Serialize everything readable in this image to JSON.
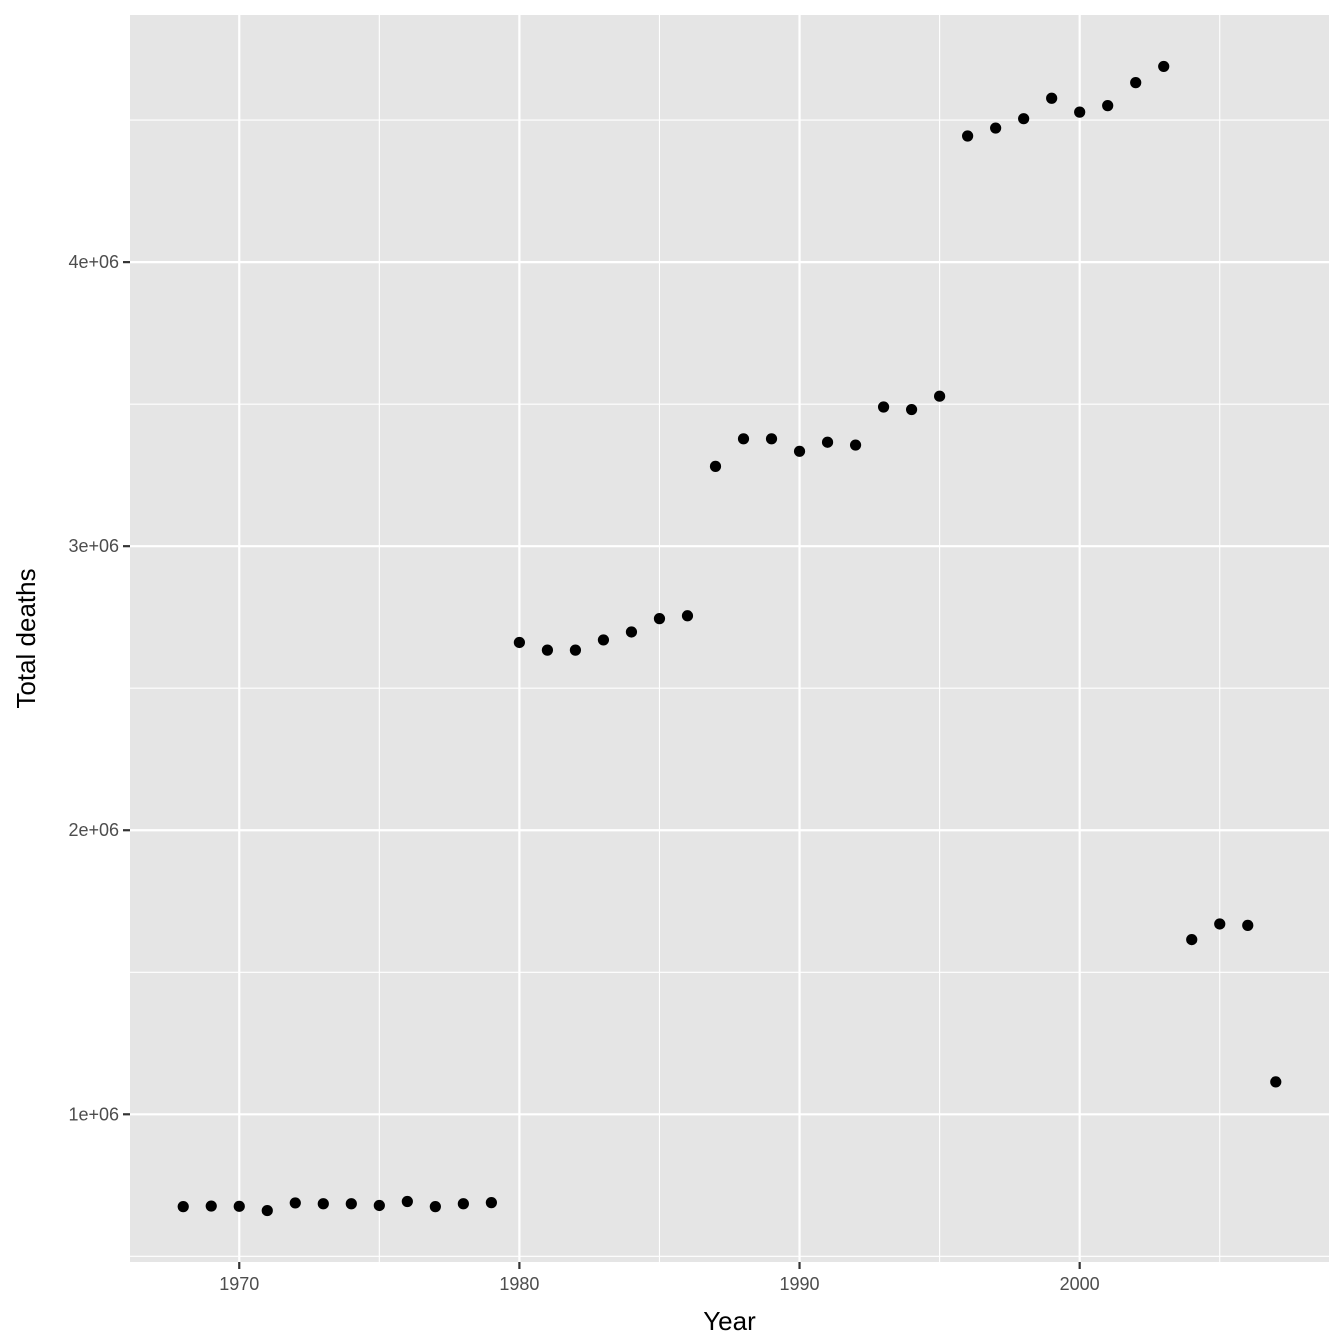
{
  "chart_data": {
    "type": "scatter",
    "title": "",
    "xlabel": "Year",
    "ylabel": "Total deaths",
    "xlim": [
      1966.1,
      2008.9
    ],
    "ylim": [
      480000,
      4870000
    ],
    "x_ticks": [
      1970,
      1980,
      1990,
      2000
    ],
    "x_tick_labels": [
      "1970",
      "1980",
      "1990",
      "2000"
    ],
    "x_minor_ticks": [
      1975,
      1985,
      1995,
      2005
    ],
    "y_ticks": [
      1000000,
      2000000,
      3000000,
      4000000
    ],
    "y_tick_labels": [
      "1e+06",
      "2e+06",
      "3e+06",
      "4e+06"
    ],
    "y_minor_ticks": [
      500000,
      1500000,
      2500000,
      3500000,
      4500000
    ],
    "grid": true,
    "legend": "none",
    "colors": {
      "panel_background": "#e5e5e5",
      "grid": "#ffffff",
      "point": "#000000",
      "tick_label": "#4d4d4d",
      "axis_title": "#000000"
    },
    "series": [
      {
        "x": [
          1968,
          1969,
          1970,
          1971,
          1972,
          1973,
          1974,
          1975,
          1976,
          1977,
          1978,
          1979,
          1980,
          1981,
          1982,
          1983,
          1984,
          1985,
          1986,
          1987,
          1988,
          1989,
          1990,
          1991,
          1992,
          1993,
          1994,
          1995,
          1996,
          1997,
          1998,
          1999,
          2000,
          2001,
          2002,
          2003,
          2004,
          2005,
          2006,
          2007
        ],
        "y": [
          675000,
          677000,
          676000,
          661000,
          688000,
          685000,
          685000,
          679000,
          693000,
          675000,
          685000,
          689000,
          2661000,
          2634000,
          2634000,
          2670000,
          2698000,
          2745000,
          2755000,
          3281000,
          3378000,
          3378000,
          3334000,
          3366000,
          3356000,
          3490000,
          3481000,
          3528000,
          4444000,
          4472000,
          4505000,
          4577000,
          4528000,
          4551000,
          4632000,
          4689000,
          1615000,
          1670000,
          1665000,
          1114000
        ]
      }
    ]
  }
}
